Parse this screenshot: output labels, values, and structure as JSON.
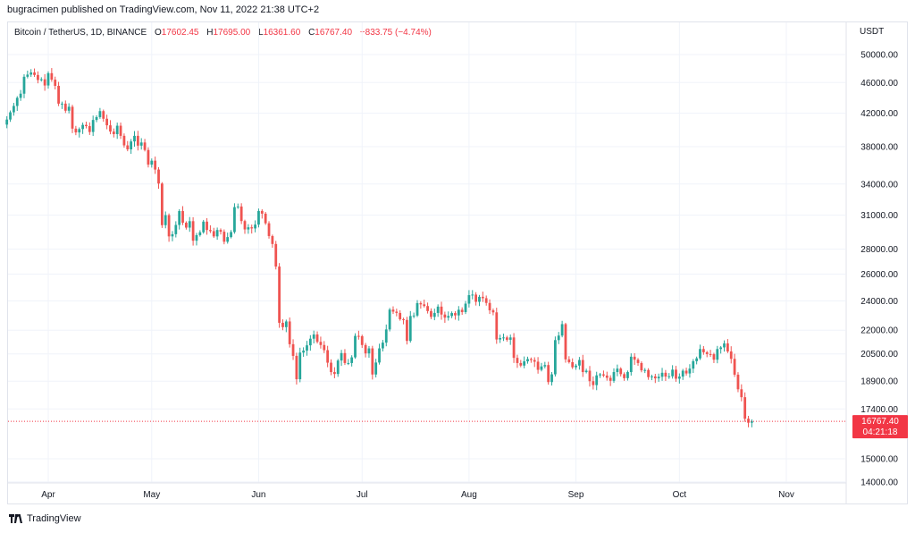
{
  "header": {
    "publisher_line": "bugracimen published on TradingView.com, Nov 11, 2022 21:38 UTC+2"
  },
  "legend": {
    "symbol": "Bitcoin / TetherUS, 1D, BINANCE",
    "open_label": "O",
    "open_value": "17602.45",
    "high_label": "H",
    "high_value": "17695.00",
    "low_label": "L",
    "low_value": "16361.60",
    "close_label": "C",
    "close_value": "16767.40",
    "change": "−833.75 (−4.74%)"
  },
  "footer": {
    "brand": "TradingView",
    "logo_icon": "tradingview-logo-icon"
  },
  "colors": {
    "up": "#26a69a",
    "down": "#ef5350",
    "grid": "#f0f3fa",
    "axis_text": "#131722",
    "price_tag": "#f23645"
  },
  "chart_data": {
    "type": "candlestick",
    "currency_label": "USDT",
    "y_scale": "log",
    "ylim": [
      13500,
      53500
    ],
    "y_ticks": [
      50000,
      46000,
      42000,
      38000,
      34000,
      31000,
      28000,
      26000,
      24000,
      22000,
      20500,
      18900,
      17400,
      15000,
      14000
    ],
    "y_tick_labels": [
      "50000.00",
      "46000.00",
      "42000.00",
      "38000.00",
      "34000.00",
      "31000.00",
      "28000.00",
      "26000.00",
      "24000.00",
      "22000.00",
      "20500.00",
      "18900.00",
      "17400.00",
      "15000.00",
      "14000.00"
    ],
    "x_tick_labels": [
      "Apr",
      "May",
      "Jun",
      "Jul",
      "Aug",
      "Sep",
      "Oct",
      "Nov"
    ],
    "x_tick_dates": [
      "2022-04-01",
      "2022-05-01",
      "2022-06-01",
      "2022-07-01",
      "2022-08-01",
      "2022-09-01",
      "2022-10-01",
      "2022-11-01"
    ],
    "first_date": "2022-03-20",
    "last_price": {
      "value": "16767.40",
      "countdown": "04:21:18"
    },
    "closes": [
      41200,
      42100,
      42900,
      43950,
      44500,
      46800,
      47100,
      47400,
      47050,
      46350,
      46450,
      45600,
      47300,
      46400,
      45550,
      43200,
      43200,
      42300,
      42800,
      40100,
      39650,
      40050,
      40550,
      40400,
      39700,
      41150,
      41500,
      42250,
      41300,
      40500,
      39750,
      39450,
      40450,
      39250,
      38150,
      37700,
      38600,
      39250,
      38120,
      38480,
      37630,
      36020,
      36450,
      35500,
      34050,
      30080,
      30990,
      29090,
      29280,
      30100,
      31370,
      30300,
      29860,
      30440,
      28720,
      29200,
      29450,
      30400,
      29650,
      29550,
      29090,
      29650,
      29500,
      28630,
      29030,
      29470,
      31740,
      31800,
      30450,
      29700,
      29890,
      29790,
      30130,
      31380,
      31130,
      30250,
      29120,
      28440,
      26590,
      22490,
      22200,
      22580,
      21100,
      20380,
      19010,
      20580,
      20700,
      21030,
      21450,
      21720,
      21250,
      21050,
      20730,
      19970,
      19420,
      19310,
      20100,
      20550,
      19950,
      19950,
      20290,
      21630,
      21610,
      21050,
      20530,
      20840,
      19280,
      19980,
      20840,
      21200,
      22050,
      23390,
      23250,
      23160,
      22730,
      22680,
      21310,
      22950,
      22980,
      23850,
      23760,
      23640,
      23290,
      22890,
      23160,
      23600,
      23050,
      22840,
      22950,
      23150,
      22990,
      23380,
      23220,
      23810,
      24420,
      24460,
      23940,
      24300,
      24200,
      23860,
      23340,
      23200,
      21400,
      21490,
      21530,
      21380,
      21530,
      20260,
      19950,
      19800,
      20050,
      20190,
      20130,
      20030,
      19550,
      19750,
      19830,
      18850,
      19290,
      21360,
      21650,
      22400,
      20170,
      20000,
      19700,
      19800,
      20130,
      19420,
      19500,
      18900,
      18680,
      19230,
      19290,
      19220,
      19090,
      18920,
      19420,
      19620,
      19300,
      19070,
      19420,
      20330,
      20150,
      19950,
      19520,
      19540,
      19130,
      19170,
      19060,
      19150,
      19380,
      19160,
      19180,
      19560,
      19040,
      19160,
      19500,
      19340,
      19620,
      20060,
      20230,
      20800,
      20600,
      20490,
      20480,
      20150,
      20800,
      20900,
      21150,
      20650,
      20200,
      19270,
      18450,
      18020,
      16900,
      16700,
      16767
    ],
    "notes_on_data": ""
  }
}
